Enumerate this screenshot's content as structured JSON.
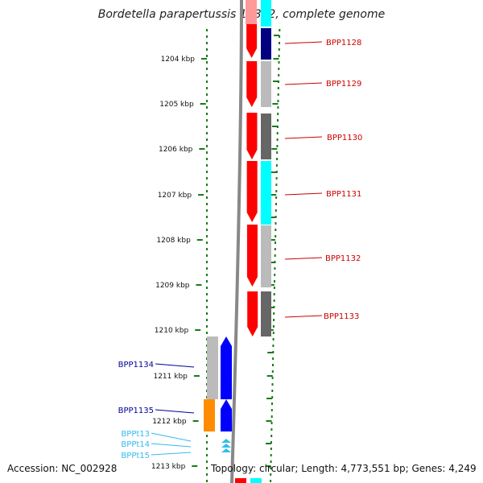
{
  "title": "Bordetella parapertussis 12822, complete genome",
  "footer": {
    "accession": "Accession: NC_002928",
    "summary": "Topology: circular; Length: 4,773,551 bp; Genes: 4,249"
  },
  "scale_ticks": [
    "1204 kbp",
    "1205 kbp",
    "1206 kbp",
    "1207 kbp",
    "1208 kbp",
    "1209 kbp",
    "1210 kbp",
    "1211 kbp",
    "1212 kbp",
    "1213 kbp"
  ],
  "genes": [
    {
      "label": "BPP1128",
      "strand": "forward",
      "color": "#ff0000",
      "cog_color": "#000080"
    },
    {
      "label": "BPP1129",
      "strand": "forward",
      "color": "#ff0000",
      "cog_color": "#bbbbbb"
    },
    {
      "label": "BPP1130",
      "strand": "forward",
      "color": "#ff0000",
      "cog_color": "#666666"
    },
    {
      "label": "BPP1131",
      "strand": "forward",
      "color": "#ff0000",
      "cog_color": "#00ffff"
    },
    {
      "label": "BPP1132",
      "strand": "forward",
      "color": "#ff0000",
      "cog_color": "#bbbbbb"
    },
    {
      "label": "BPP1133",
      "strand": "forward",
      "color": "#ff0000",
      "cog_color": "#666666"
    },
    {
      "label": "BPP1134",
      "strand": "reverse",
      "color": "#0000ff",
      "cog_color": "#bbbbbb"
    },
    {
      "label": "BPP1135",
      "strand": "reverse",
      "color": "#0000ff",
      "cog_color": "#ff8c00"
    },
    {
      "label": "BPPt13",
      "strand": "reverse",
      "color": "#33bbee",
      "cog_color": ""
    },
    {
      "label": "BPPt14",
      "strand": "reverse",
      "color": "#33bbee",
      "cog_color": ""
    },
    {
      "label": "BPPt15",
      "strand": "reverse",
      "color": "#33bbee",
      "cog_color": ""
    }
  ],
  "colors": {
    "forward_label": "#cc0000",
    "reverse_label": "#000099",
    "trna_label": "#33bbee",
    "tick": "#1a7a1a",
    "backbone": "#888888"
  }
}
